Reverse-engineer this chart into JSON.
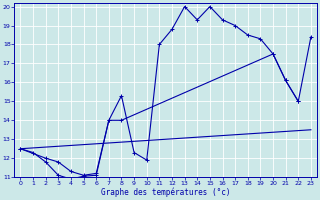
{
  "title": "Graphe des températures (°c)",
  "bg_color": "#cce8e8",
  "line_color": "#0000aa",
  "xlim": [
    -0.5,
    23.5
  ],
  "ylim": [
    11,
    20.2
  ],
  "xticks": [
    0,
    1,
    2,
    3,
    4,
    5,
    6,
    7,
    8,
    9,
    10,
    11,
    12,
    13,
    14,
    15,
    16,
    17,
    18,
    19,
    20,
    21,
    22,
    23
  ],
  "yticks": [
    11,
    12,
    13,
    14,
    15,
    16,
    17,
    18,
    19,
    20
  ],
  "line1_x": [
    0,
    1,
    2,
    3,
    4,
    5,
    6,
    7,
    8,
    9,
    10,
    11,
    12,
    13,
    14,
    15,
    16,
    17,
    18,
    19,
    20,
    21,
    22
  ],
  "line1_y": [
    12.5,
    12.3,
    11.8,
    11.1,
    10.9,
    11.05,
    11.1,
    14.0,
    15.3,
    12.3,
    11.9,
    18.0,
    18.8,
    20.0,
    19.3,
    20.0,
    19.3,
    19.0,
    18.5,
    18.3,
    17.5,
    16.1,
    15.0
  ],
  "line2_x": [
    0,
    2,
    3,
    4,
    5,
    6,
    7,
    8,
    20,
    21,
    22,
    23
  ],
  "line2_y": [
    12.5,
    12.0,
    11.8,
    11.3,
    11.1,
    11.2,
    14.0,
    14.0,
    17.5,
    16.1,
    15.0,
    18.4
  ],
  "line4_x": [
    0,
    23
  ],
  "line4_y": [
    12.5,
    13.5
  ]
}
